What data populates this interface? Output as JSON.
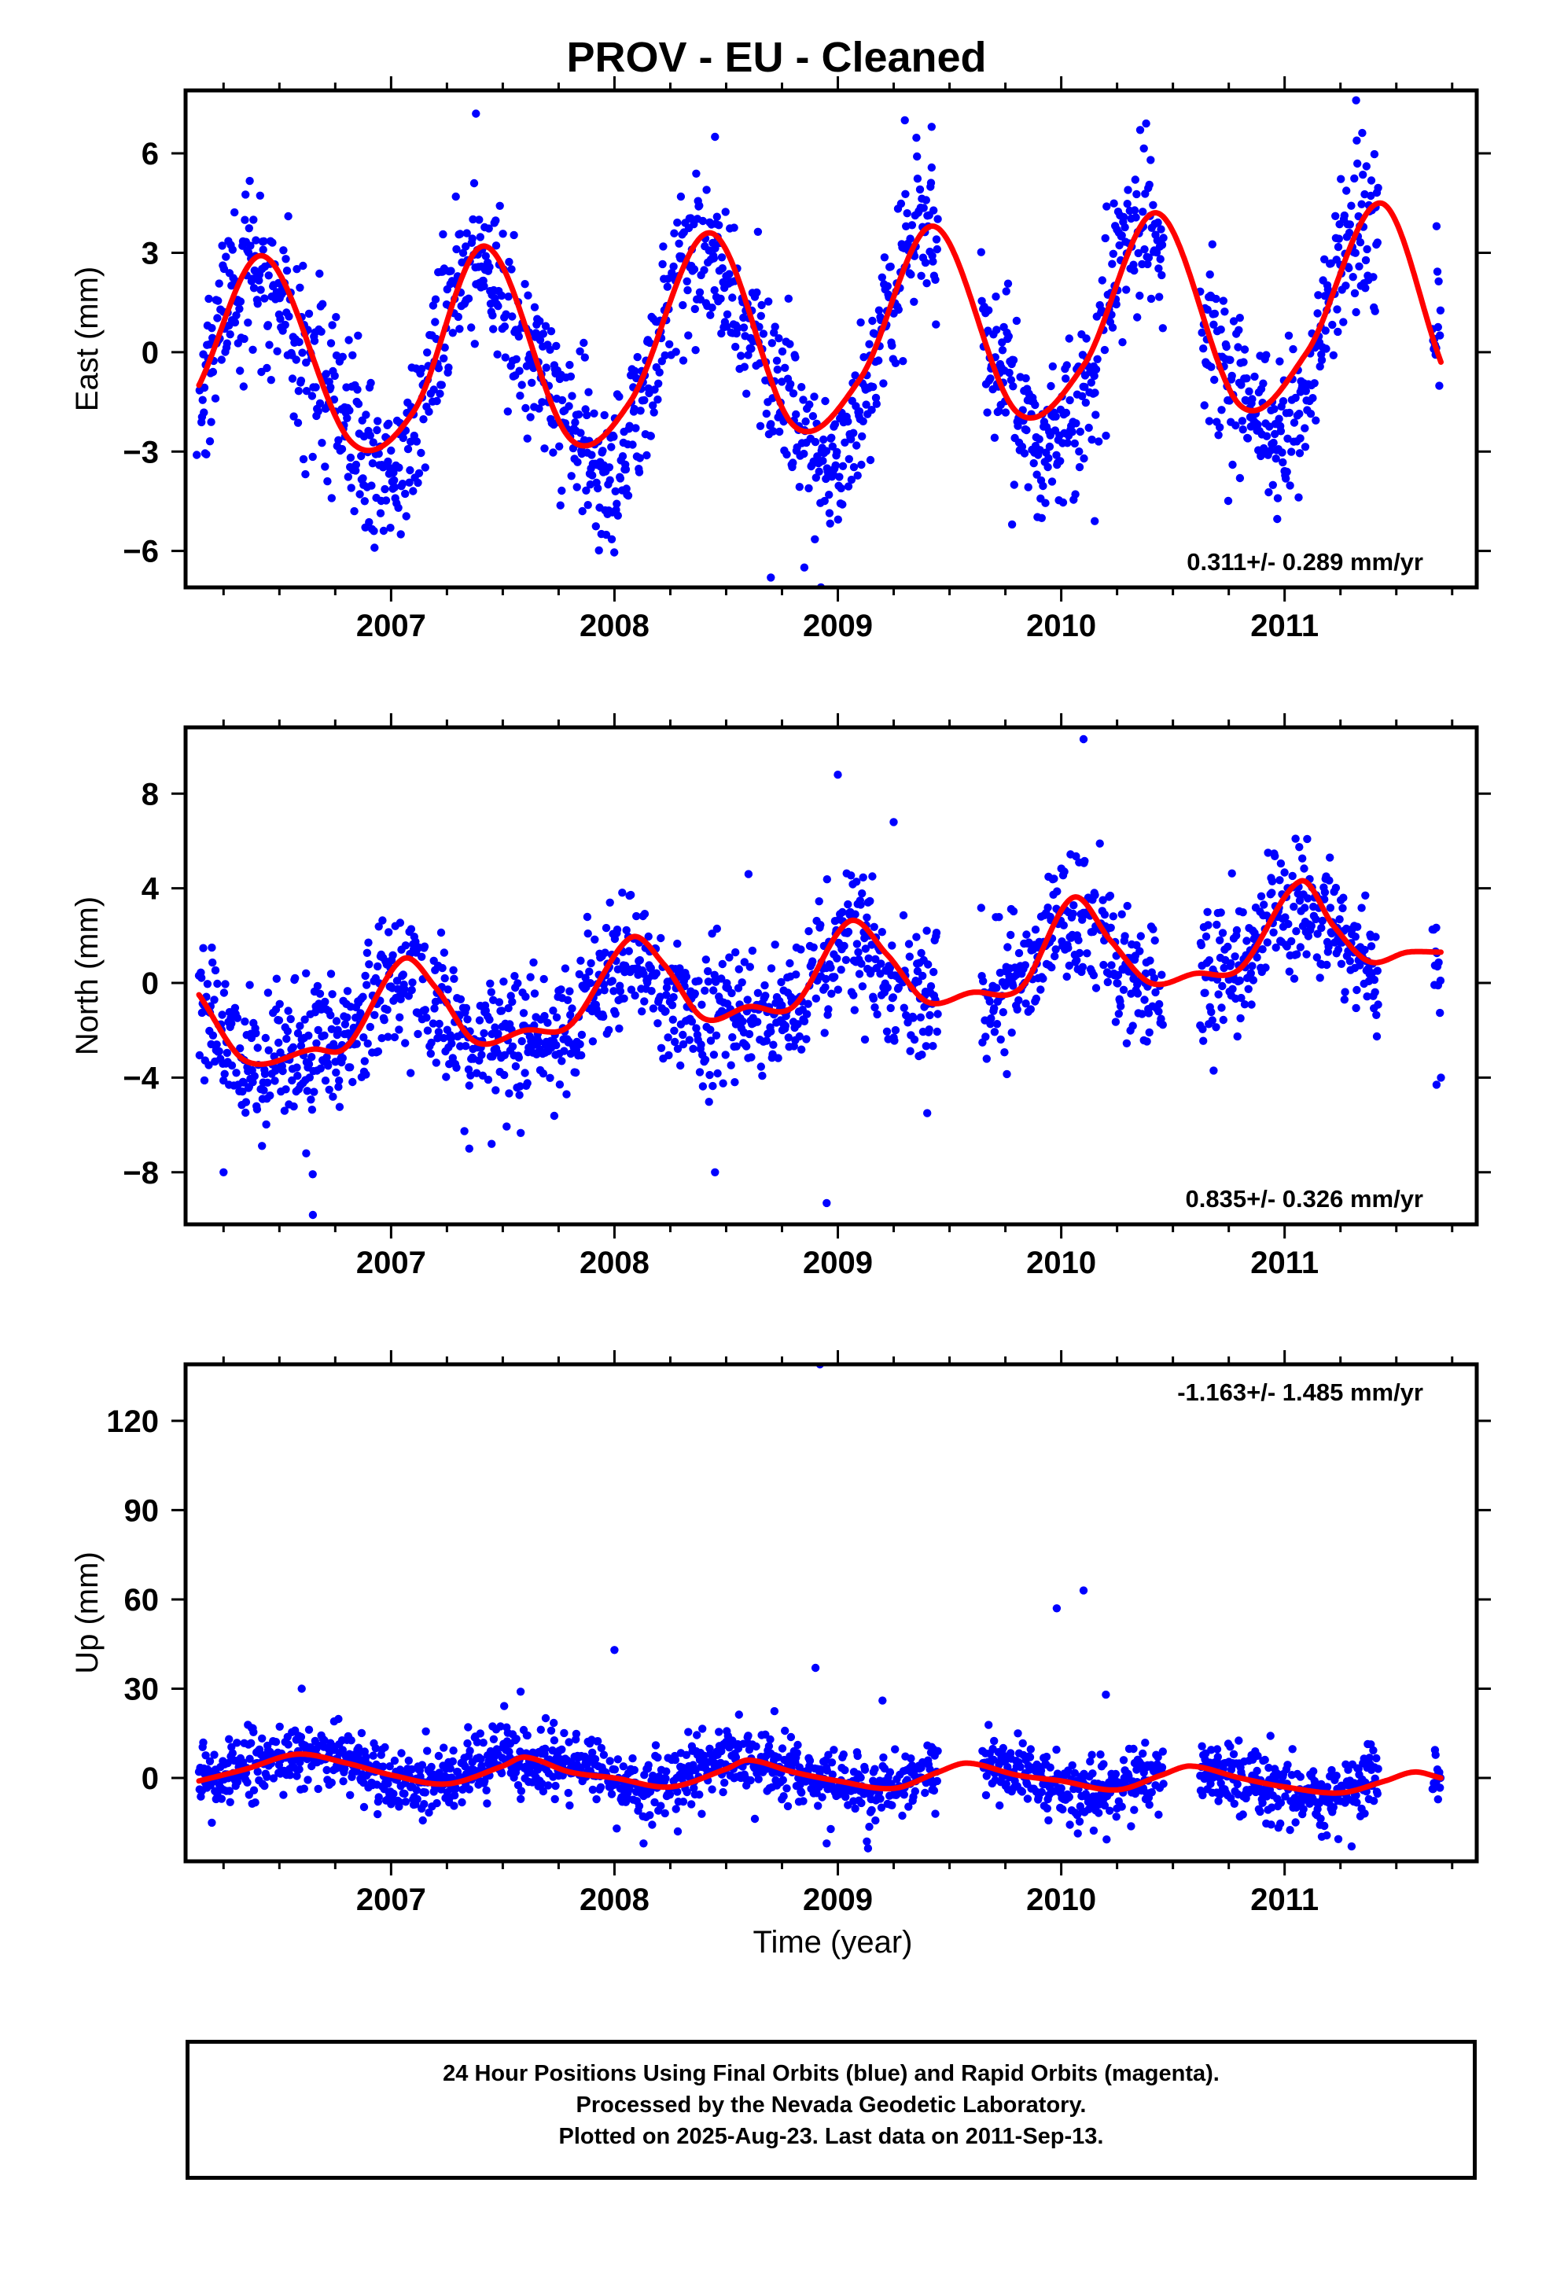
{
  "title": "PROV  - EU - Cleaned",
  "footer": {
    "line1": "24 Hour Positions Using Final Orbits (blue) and Rapid Orbits (magenta).",
    "line2": "Processed by the Nevada Geodetic Laboratory.",
    "line3": "Plotted on 2025-Aug-23. Last data on 2011-Sep-13."
  },
  "colors": {
    "data": "#0000ff",
    "model": "#ff0000",
    "axis": "#000000"
  },
  "chart_data": [
    {
      "type": "scatter",
      "ylabel": "East (mm)",
      "xlabel": "",
      "xlim": [
        2006.08,
        2011.86
      ],
      "ylim": [
        -7.1,
        7.9
      ],
      "x_ticks": [
        2007,
        2008,
        2009,
        2010,
        2011
      ],
      "y_ticks": [
        -6,
        -3,
        0,
        3,
        6
      ],
      "y_tick_labels": [
        "−6",
        "−3",
        "0",
        "3",
        "6"
      ],
      "velocity_label": "0.311+/- 0.289 mm/yr",
      "label_position": "bottom-right",
      "data_gaps": [
        [
          2009.45,
          2009.64
        ],
        [
          2010.46,
          2010.62
        ],
        [
          2011.42,
          2011.66
        ]
      ],
      "series": [
        {
          "kind": "points",
          "x_range": [
            2006.14,
            2011.7
          ],
          "model": {
            "offset": -0.05,
            "trend": 0.311,
            "ref_year": 2009,
            "ann_amp": 3.0,
            "ann_phase_peak": 0.42,
            "semi_amp": 0.6,
            "semi_phase_peak": 0.3
          },
          "noise_sd": 1.2
        },
        {
          "kind": "fit",
          "x_range": [
            2006.14,
            2011.7
          ],
          "anchors": [
            [
              2006.14,
              -1.0
            ],
            [
              2006.43,
              2.9
            ],
            [
              2006.82,
              -2.7
            ],
            [
              2007.1,
              -1.8
            ],
            [
              2007.42,
              3.2
            ],
            [
              2007.8,
              -2.6
            ],
            [
              2008.07,
              -1.5
            ],
            [
              2008.43,
              3.6
            ],
            [
              2008.8,
              -2.2
            ],
            [
              2009.1,
              -0.8
            ],
            [
              2009.43,
              3.8
            ],
            [
              2009.8,
              -1.8
            ],
            [
              2010.1,
              -0.4
            ],
            [
              2010.43,
              4.2
            ],
            [
              2010.8,
              -1.6
            ],
            [
              2011.1,
              0.0
            ],
            [
              2011.43,
              4.5
            ],
            [
              2011.7,
              -0.3
            ]
          ]
        }
      ],
      "outliers": [
        [
          2007.38,
          7.2
        ],
        [
          2008.45,
          6.5
        ],
        [
          2008.7,
          -6.8
        ],
        [
          2008.85,
          -6.5
        ],
        [
          2009.3,
          7.0
        ],
        [
          2009.42,
          6.8
        ],
        [
          2010.38,
          6.9
        ],
        [
          2011.32,
          7.6
        ],
        [
          2009.78,
          -5.2
        ],
        [
          2010.15,
          -5.1
        ],
        [
          2011.68,
          3.8
        ],
        [
          2006.13,
          -3.1
        ],
        [
          2010.8,
          -3.8
        ],
        [
          2011.07,
          -2.6
        ]
      ]
    },
    {
      "type": "scatter",
      "ylabel": "North (mm)",
      "xlabel": "",
      "xlim": [
        2006.08,
        2011.86
      ],
      "ylim": [
        -10.2,
        10.8
      ],
      "x_ticks": [
        2007,
        2008,
        2009,
        2010,
        2011
      ],
      "y_ticks": [
        -8,
        -4,
        0,
        4,
        8
      ],
      "y_tick_labels": [
        "−8",
        "−4",
        "0",
        "4",
        "8"
      ],
      "velocity_label": "0.835+/- 0.326 mm/yr",
      "label_position": "bottom-right",
      "data_gaps": [
        [
          2009.45,
          2009.64
        ],
        [
          2010.46,
          2010.62
        ],
        [
          2011.42,
          2011.66
        ]
      ],
      "series": [
        {
          "kind": "points",
          "x_range": [
            2006.14,
            2011.7
          ],
          "model": {
            "offset": -0.1,
            "trend": 0.835,
            "ref_year": 2009,
            "ann_amp": 1.4,
            "ann_phase_peak": 0.05,
            "semi_amp": 0.5,
            "semi_phase_peak": 0.05
          },
          "noise_sd": 1.4
        },
        {
          "kind": "fit",
          "x_range": [
            2006.14,
            2011.7
          ],
          "anchors": [
            [
              2006.14,
              -0.5
            ],
            [
              2006.35,
              -3.3
            ],
            [
              2006.65,
              -2.8
            ],
            [
              2006.8,
              -2.7
            ],
            [
              2007.05,
              1.0
            ],
            [
              2007.2,
              -0.2
            ],
            [
              2007.38,
              -2.5
            ],
            [
              2007.6,
              -2.0
            ],
            [
              2007.8,
              -1.8
            ],
            [
              2008.07,
              1.9
            ],
            [
              2008.22,
              0.8
            ],
            [
              2008.4,
              -1.5
            ],
            [
              2008.6,
              -1.0
            ],
            [
              2008.8,
              -1.0
            ],
            [
              2009.05,
              2.6
            ],
            [
              2009.22,
              1.2
            ],
            [
              2009.4,
              -0.8
            ],
            [
              2009.6,
              -0.4
            ],
            [
              2009.82,
              -0.2
            ],
            [
              2010.05,
              3.6
            ],
            [
              2010.22,
              1.8
            ],
            [
              2010.4,
              0.0
            ],
            [
              2010.6,
              0.4
            ],
            [
              2010.8,
              0.6
            ],
            [
              2011.07,
              4.3
            ],
            [
              2011.22,
              2.4
            ],
            [
              2011.38,
              0.9
            ],
            [
              2011.55,
              1.3
            ],
            [
              2011.7,
              1.3
            ]
          ]
        }
      ],
      "outliers": [
        [
          2009.0,
          8.8
        ],
        [
          2010.1,
          10.3
        ],
        [
          2006.65,
          -9.8
        ],
        [
          2008.95,
          -9.3
        ],
        [
          2008.45,
          -8.0
        ],
        [
          2006.25,
          -8.0
        ],
        [
          2007.35,
          -7.0
        ],
        [
          2007.45,
          -6.8
        ],
        [
          2009.4,
          -5.5
        ],
        [
          2009.25,
          6.8
        ],
        [
          2008.6,
          4.6
        ],
        [
          2011.7,
          -4.0
        ],
        [
          2011.68,
          -4.3
        ],
        [
          2006.62,
          -7.2
        ]
      ]
    },
    {
      "type": "scatter",
      "ylabel": "Up (mm)",
      "xlabel": "Time (year)",
      "xlim": [
        2006.08,
        2011.86
      ],
      "ylim": [
        -28,
        139
      ],
      "x_ticks": [
        2007,
        2008,
        2009,
        2010,
        2011
      ],
      "y_ticks": [
        0,
        30,
        60,
        90,
        120
      ],
      "y_tick_labels": [
        "0",
        "30",
        "60",
        "90",
        "120"
      ],
      "velocity_label": "-1.163+/- 1.485 mm/yr",
      "label_position": "top-right",
      "data_gaps": [
        [
          2009.45,
          2009.64
        ],
        [
          2010.46,
          2010.62
        ],
        [
          2011.42,
          2011.66
        ]
      ],
      "series": [
        {
          "kind": "points",
          "x_range": [
            2006.14,
            2011.7
          ],
          "model": {
            "offset": 1.0,
            "trend": -1.163,
            "ref_year": 2009,
            "ann_amp": 4.5,
            "ann_phase_peak": 0.6,
            "semi_amp": 1.0,
            "semi_phase_peak": 0.4
          },
          "noise_sd": 5.5
        },
        {
          "kind": "fit",
          "x_range": [
            2006.14,
            2011.7
          ],
          "anchors": [
            [
              2006.14,
              -1.0
            ],
            [
              2006.35,
              3.0
            ],
            [
              2006.58,
              8.0
            ],
            [
              2006.8,
              5.0
            ],
            [
              2007.0,
              1.0
            ],
            [
              2007.25,
              -2.0
            ],
            [
              2007.5,
              4.0
            ],
            [
              2007.6,
              7.0
            ],
            [
              2007.8,
              2.0
            ],
            [
              2008.0,
              0.0
            ],
            [
              2008.25,
              -3.0
            ],
            [
              2008.5,
              3.0
            ],
            [
              2008.6,
              6.0
            ],
            [
              2008.8,
              2.0
            ],
            [
              2009.0,
              -1.0
            ],
            [
              2009.25,
              -3.5
            ],
            [
              2009.45,
              2.0
            ],
            [
              2009.58,
              5.0
            ],
            [
              2009.8,
              1.0
            ],
            [
              2010.0,
              -1.0
            ],
            [
              2010.25,
              -4.0
            ],
            [
              2010.45,
              1.0
            ],
            [
              2010.58,
              4.0
            ],
            [
              2010.8,
              0.0
            ],
            [
              2011.0,
              -3.0
            ],
            [
              2011.25,
              -5.0
            ],
            [
              2011.45,
              -1.0
            ],
            [
              2011.58,
              2.0
            ],
            [
              2011.7,
              0.0
            ]
          ]
        }
      ],
      "outliers": [
        [
          2008.92,
          139.0
        ],
        [
          2008.9,
          37.0
        ],
        [
          2009.98,
          57.0
        ],
        [
          2010.1,
          63.0
        ],
        [
          2008.0,
          43.0
        ],
        [
          2010.2,
          28.0
        ],
        [
          2006.6,
          30.0
        ],
        [
          2007.58,
          29.0
        ],
        [
          2009.2,
          26.0
        ],
        [
          2011.3,
          -23.0
        ],
        [
          2008.13,
          -22.0
        ],
        [
          2008.95,
          -22.0
        ]
      ]
    }
  ]
}
